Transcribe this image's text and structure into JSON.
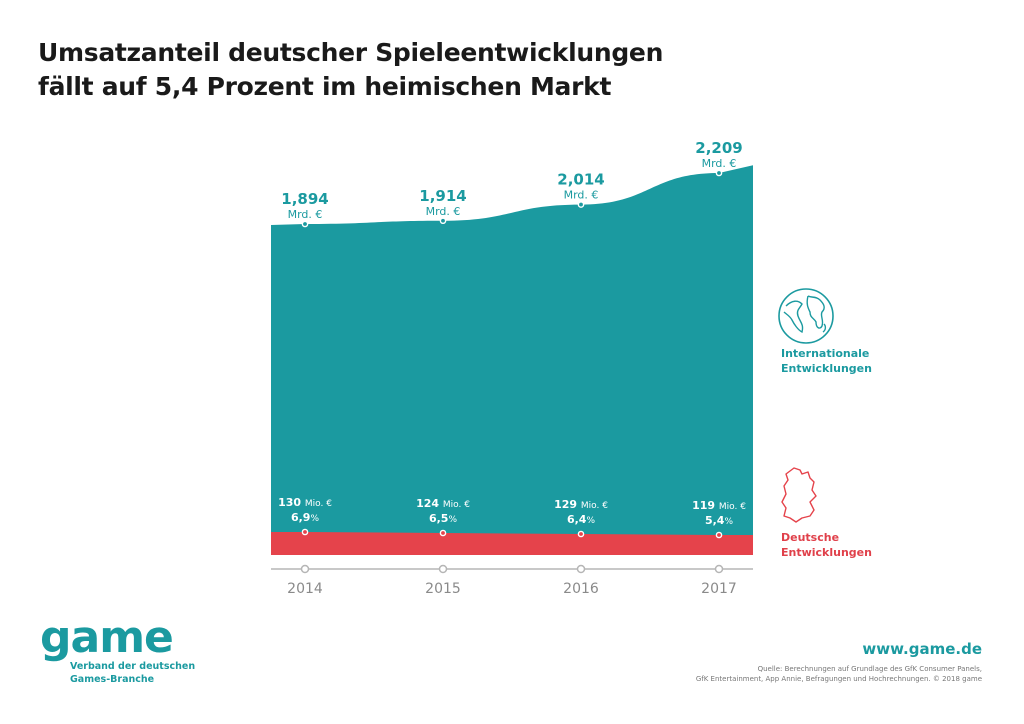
{
  "title_line1": "Umsatzanteil deutscher Spieleentwicklungen",
  "title_line2": "fällt auf 5,4 Prozent im heimischen Markt",
  "colors": {
    "international": "#1b9aa0",
    "deutsch": "#e5434b",
    "axis": "#b5b5b5",
    "year_label": "#8a8a8a"
  },
  "chart_data": {
    "type": "area",
    "title": "Umsatzanteil deutscher Spieleentwicklungen fällt auf 5,4 Prozent im heimischen Markt",
    "x": [
      "2014",
      "2015",
      "2016",
      "2017"
    ],
    "series": [
      {
        "name": "Internationale Entwicklungen",
        "unit": "Mrd. €",
        "values": [
          1.894,
          1.914,
          2.014,
          2.209
        ],
        "labels": [
          "1,894",
          "1,914",
          "2,014",
          "2,209"
        ]
      },
      {
        "name": "Deutsche Entwicklungen",
        "unit": "Mio. €",
        "values": [
          130,
          124,
          129,
          119
        ],
        "labels": [
          "130",
          "124",
          "129",
          "119"
        ],
        "share_percent": [
          6.9,
          6.5,
          6.4,
          5.4
        ],
        "share_labels": [
          "6,9",
          "6,5",
          "6,4",
          "5,4"
        ]
      }
    ],
    "total_unit_label": "Mrd. €",
    "de_unit_label": "Mio. €",
    "percent_sign": "%",
    "legend": [
      "Internationale Entwicklungen",
      "Deutsche Entwicklungen"
    ],
    "legend_position": "right",
    "grid": false
  },
  "legend": {
    "international_line1": "Internationale",
    "international_line2": "Entwicklungen",
    "deutsch_line1": "Deutsche",
    "deutsch_line2": "Entwicklungen"
  },
  "footer": {
    "logo": "game",
    "logo_sub1": "Verband der deutschen",
    "logo_sub2": "Games-Branche",
    "url": "www.game.de",
    "source_line1": "Quelle: Berechnungen auf Grundlage des GfK Consumer Panels,",
    "source_line2": "GfK Entertainment, App Annie, Befragungen und Hochrechnungen. © 2018 game"
  }
}
